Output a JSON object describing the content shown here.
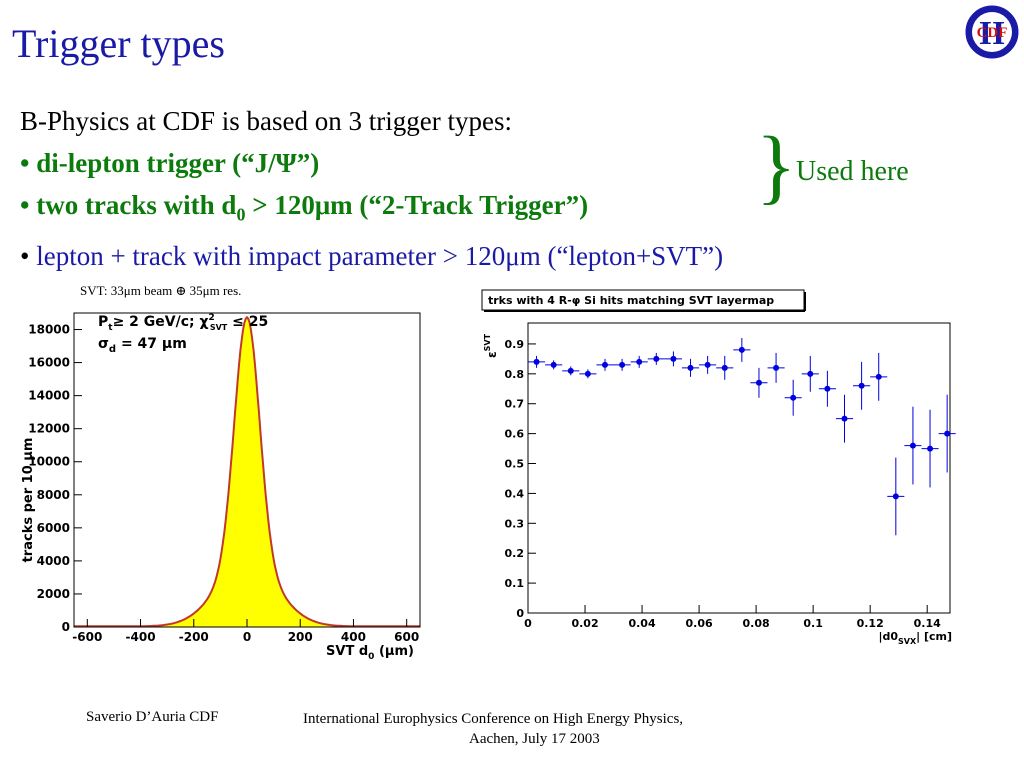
{
  "slide": {
    "title": "Trigger types",
    "intro": "B-Physics at CDF is based on 3 trigger types:",
    "bullet_char": "•",
    "bullet1": "di-lepton trigger (“J/Ψ”)",
    "bullet2_pre": "two tracks with d",
    "bullet2_sub": "0",
    "bullet2_post": " > 120μm (“2-Track Trigger”)",
    "bullet3": "lepton + track with impact parameter > 120μm (“lepton+SVT”)",
    "brace": "}",
    "used_here": "Used here",
    "logo_text": "CDF",
    "logo_roman": "II",
    "colors": {
      "title": "#1a1aa6",
      "green": "#0c7a0c",
      "blue": "#1a1aa6"
    }
  },
  "footer": {
    "author": "Saverio D’Auria CDF",
    "conference": "International Europhysics Conference on High Energy Physics,",
    "place_date": "Aachen, July 17 2003"
  },
  "chart_data": [
    {
      "type": "area",
      "caption": "SVT:  33μm beam ⊕ 35μm res.",
      "xlabel": "SVT d",
      "xlabel_sub": "0",
      "xlabel_unit": " (μm)",
      "ylabel": "tracks per 10  μm",
      "annotation_1": "P",
      "annotation_1_sub": "t",
      "annotation_1_rest": "≥ 2 GeV/c;  χ",
      "annotation_1_sup": "2",
      "annotation_1_sub2": "SVT",
      "annotation_1_end": " ≤ 25",
      "annotation_2": "σ",
      "annotation_2_sub": "d",
      "annotation_2_rest": " = 47  μm",
      "xlim": [
        -650,
        650
      ],
      "ylim": [
        0,
        19000
      ],
      "xticks": [
        -600,
        -400,
        -200,
        0,
        200,
        400,
        600
      ],
      "yticks": [
        0,
        2000,
        4000,
        6000,
        8000,
        10000,
        12000,
        14000,
        16000,
        18000
      ],
      "peak": 18700,
      "sigma": 47,
      "fill_color": "#ffff00",
      "line_color": "#c0392b"
    },
    {
      "type": "scatter",
      "title": "trks with 4 R-φ Si hits matching SVT layermap",
      "ylabel": "ε",
      "ylabel_sup": "SVT",
      "xlabel": "|d0",
      "xlabel_sub": "SVX",
      "xlabel_rest": "| [cm]",
      "xlim": [
        0,
        0.148
      ],
      "ylim": [
        0,
        0.97
      ],
      "xticks": [
        0,
        0.02,
        0.04,
        0.06,
        0.08,
        0.1,
        0.12,
        0.14
      ],
      "xtick_labels": [
        "0",
        "0.02",
        "0.04",
        "0.06",
        "0.08",
        "0.1",
        "0.12",
        "0.14"
      ],
      "yticks": [
        0,
        0.1,
        0.2,
        0.3,
        0.4,
        0.5,
        0.6,
        0.7,
        0.8,
        0.9
      ],
      "ytick_labels": [
        "0",
        "0.1",
        "0.2",
        "0.3",
        "0.4",
        "0.5",
        "0.6",
        "0.7",
        "0.8",
        "0.9"
      ],
      "x_halfwidth": 0.003,
      "points": [
        {
          "x": 0.003,
          "y": 0.84,
          "err": 0.02
        },
        {
          "x": 0.009,
          "y": 0.83,
          "err": 0.015
        },
        {
          "x": 0.015,
          "y": 0.81,
          "err": 0.015
        },
        {
          "x": 0.021,
          "y": 0.8,
          "err": 0.015
        },
        {
          "x": 0.027,
          "y": 0.83,
          "err": 0.02
        },
        {
          "x": 0.033,
          "y": 0.83,
          "err": 0.02
        },
        {
          "x": 0.039,
          "y": 0.84,
          "err": 0.02
        },
        {
          "x": 0.045,
          "y": 0.85,
          "err": 0.02
        },
        {
          "x": 0.051,
          "y": 0.85,
          "err": 0.025
        },
        {
          "x": 0.057,
          "y": 0.82,
          "err": 0.03
        },
        {
          "x": 0.063,
          "y": 0.83,
          "err": 0.03
        },
        {
          "x": 0.069,
          "y": 0.82,
          "err": 0.04
        },
        {
          "x": 0.075,
          "y": 0.88,
          "err": 0.04
        },
        {
          "x": 0.081,
          "y": 0.77,
          "err": 0.05
        },
        {
          "x": 0.087,
          "y": 0.82,
          "err": 0.05
        },
        {
          "x": 0.093,
          "y": 0.72,
          "err": 0.06
        },
        {
          "x": 0.099,
          "y": 0.8,
          "err": 0.06
        },
        {
          "x": 0.105,
          "y": 0.75,
          "err": 0.06
        },
        {
          "x": 0.111,
          "y": 0.65,
          "err": 0.08
        },
        {
          "x": 0.117,
          "y": 0.76,
          "err": 0.08
        },
        {
          "x": 0.123,
          "y": 0.79,
          "err": 0.08
        },
        {
          "x": 0.129,
          "y": 0.39,
          "err": 0.13
        },
        {
          "x": 0.135,
          "y": 0.56,
          "err": 0.13
        },
        {
          "x": 0.141,
          "y": 0.55,
          "err": 0.13
        },
        {
          "x": 0.147,
          "y": 0.6,
          "err": 0.13
        }
      ],
      "marker_color": "#0000e0"
    }
  ]
}
